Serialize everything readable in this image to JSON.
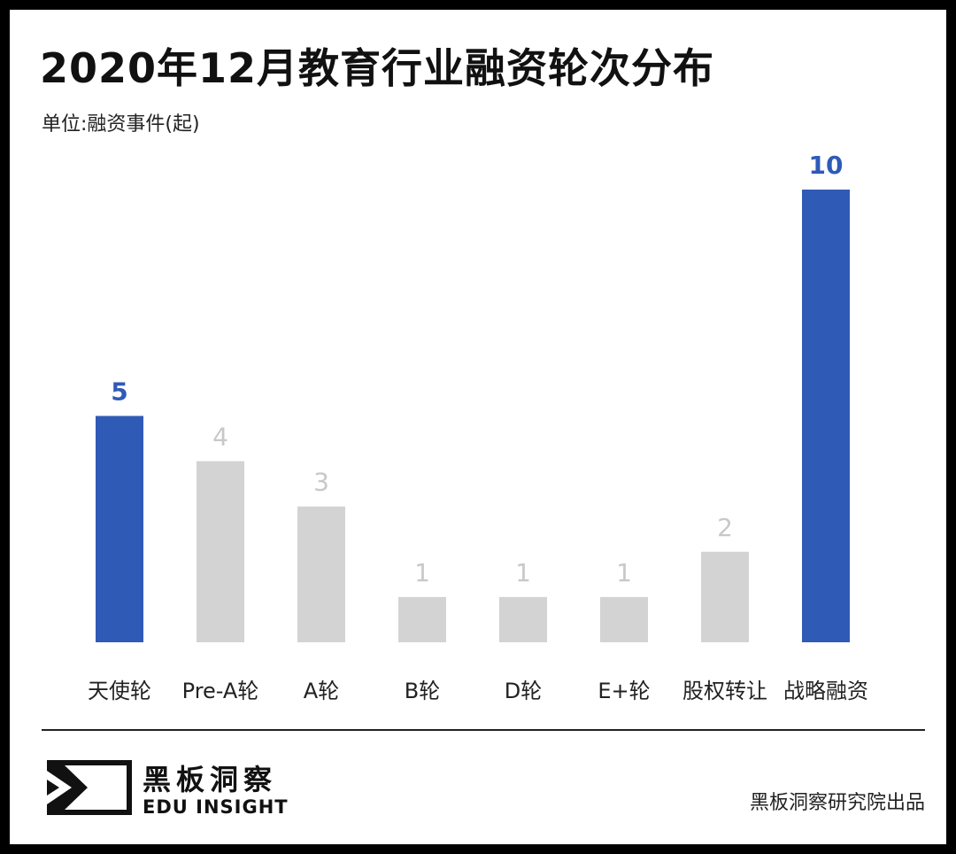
{
  "header": {
    "title": "2020年12月教育行业融资轮次分布",
    "unit": "单位:融资事件(起)"
  },
  "colors": {
    "highlight": "#2f5bb7",
    "muted_bar": "#d3d3d3",
    "muted_label": "#c8c8c8"
  },
  "chart_data": {
    "type": "bar",
    "title": "2020年12月教育行业融资轮次分布",
    "ylabel": "单位:融资事件(起)",
    "xlabel": "",
    "categories": [
      "天使轮",
      "Pre-A轮",
      "A轮",
      "B轮",
      "D轮",
      "E+轮",
      "股权转让",
      "战略融资"
    ],
    "values": [
      5,
      4,
      3,
      1,
      1,
      1,
      2,
      10
    ],
    "highlighted": [
      true,
      false,
      false,
      false,
      false,
      false,
      false,
      true
    ],
    "ylim": [
      0,
      10
    ],
    "grid": false,
    "legend": "none"
  },
  "footer": {
    "brand_cn": "黑板洞察",
    "brand_en": "EDU INSIGHT",
    "credit": "黑板洞察研究院出品"
  }
}
